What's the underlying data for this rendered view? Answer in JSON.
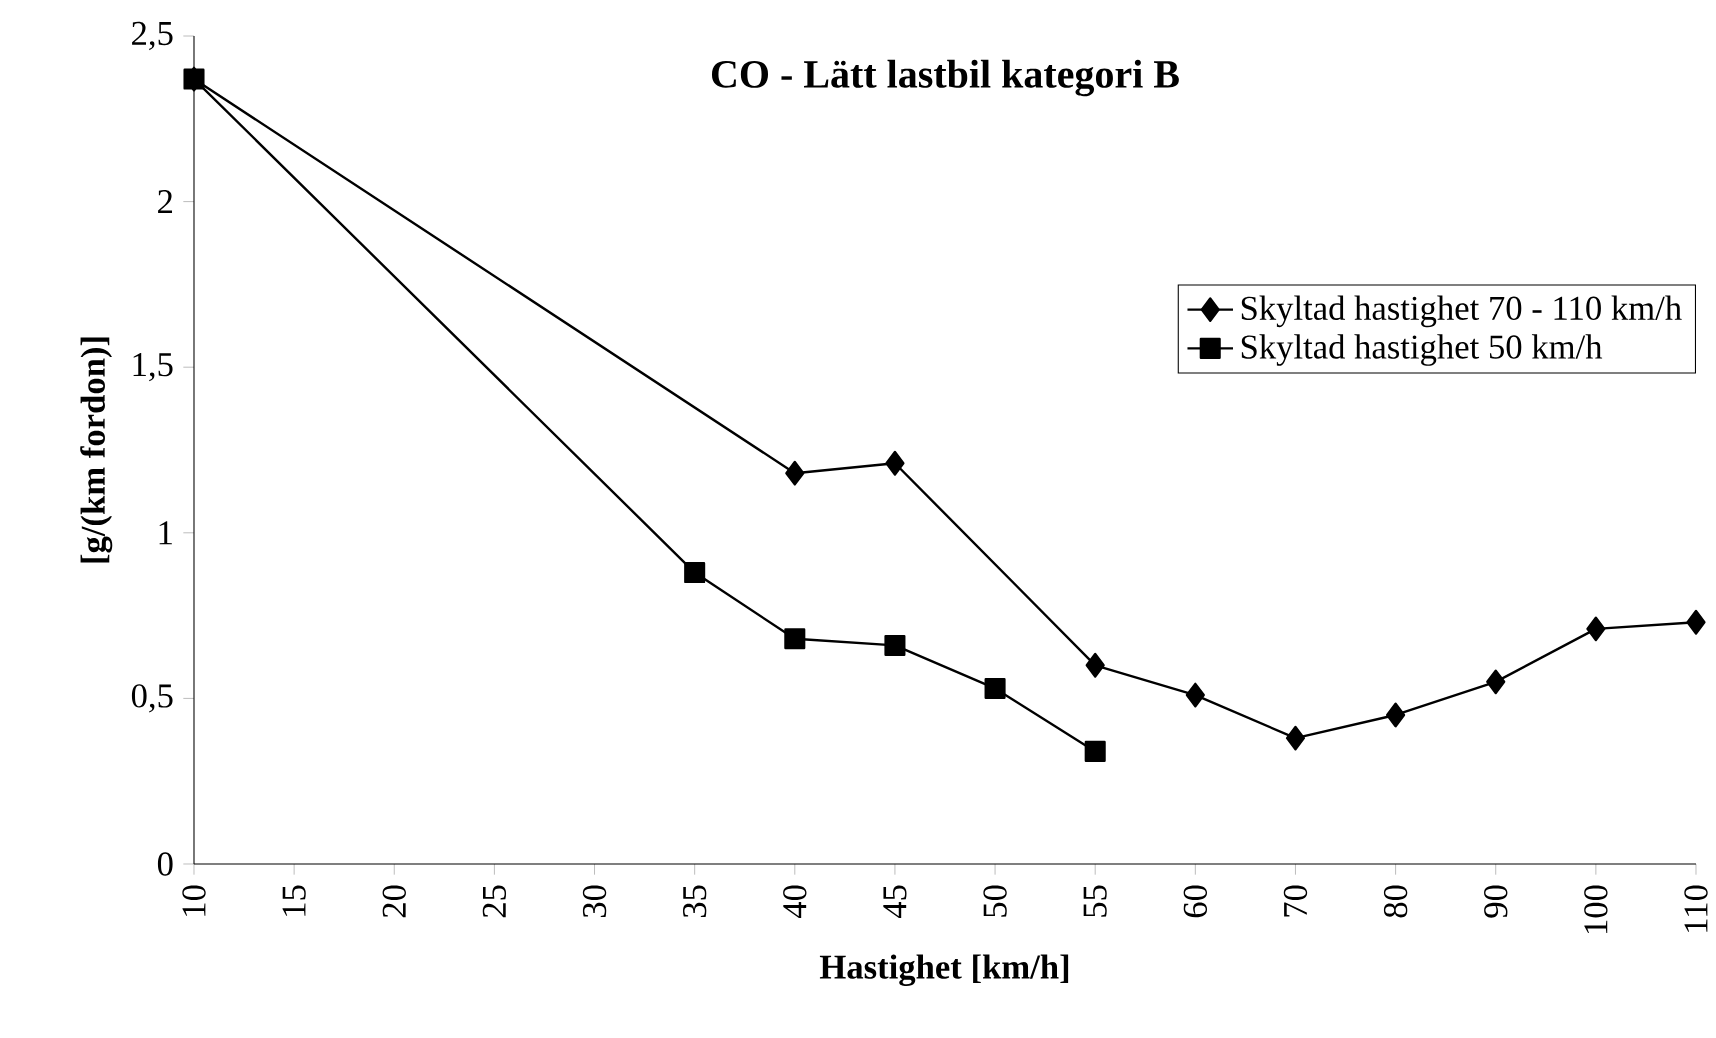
{
  "chart_data": {
    "type": "line",
    "title": "CO - Lätt lastbil kategori B",
    "xlabel": "Hastighet [km/h]",
    "ylabel": "[g/(km fordon)]",
    "categories": [
      "10",
      "15",
      "20",
      "25",
      "30",
      "35",
      "40",
      "45",
      "50",
      "55",
      "60",
      "70",
      "80",
      "90",
      "100",
      "110"
    ],
    "series": [
      {
        "name": "Skyltad hastighet 70 - 110 km/h",
        "color": "#000000",
        "marker": "diamond",
        "values": [
          2.37,
          null,
          null,
          null,
          null,
          null,
          1.18,
          1.21,
          null,
          0.6,
          0.51,
          0.38,
          0.45,
          0.55,
          0.71,
          0.73
        ]
      },
      {
        "name": "Skyltad hastighet 50 km/h",
        "color": "#000000",
        "marker": "square",
        "values": [
          2.37,
          null,
          null,
          null,
          null,
          0.88,
          0.68,
          0.66,
          0.53,
          0.34,
          null,
          null,
          null,
          null,
          null,
          null
        ]
      }
    ],
    "ylim": [
      0,
      2.5
    ],
    "yticks": [
      {
        "value": 0,
        "label": "0"
      },
      {
        "value": 0.5,
        "label": "0,5"
      },
      {
        "value": 1,
        "label": "1"
      },
      {
        "value": 1.5,
        "label": "1,5"
      },
      {
        "value": 2,
        "label": "2"
      },
      {
        "value": 2.5,
        "label": "2,5"
      }
    ],
    "grid": false,
    "legend": "top right",
    "line_style": "solid"
  }
}
